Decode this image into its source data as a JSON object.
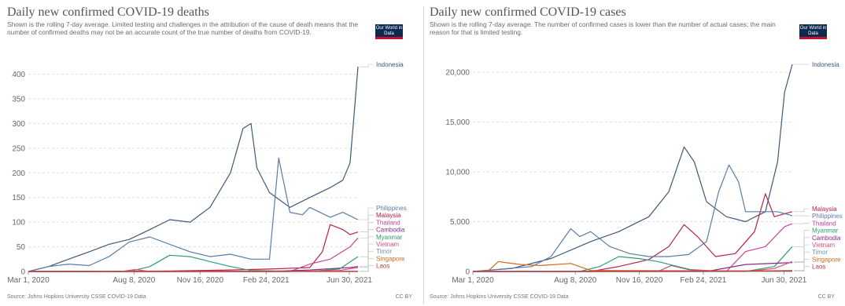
{
  "charts": [
    {
      "title": "Daily new confirmed COVID-19 deaths",
      "subtitle": "Shown is the rolling 7-day average. Limited testing and challenges in the attribution of the cause of death means that the number of confirmed deaths may not be an accurate count of the true number of deaths from COVID-19.",
      "logo": "Our World in Data",
      "source": "Source: Johns Hopkins University CSSE COVID-19 Data",
      "license": "CC BY"
    },
    {
      "title": "Daily new confirmed COVID-19 cases",
      "subtitle": "Shown is the rolling 7-day average. The number of confirmed cases is lower than the number of actual cases; the main reason for that is limited testing.",
      "logo": "Our World in Data",
      "source": "Source: Johns Hopkins University CSSE COVID-19 Data",
      "license": "CC BY"
    }
  ],
  "colors": {
    "Indonesia": "#3f5878",
    "Philippines": "#5a7ca8",
    "Malaysia": "#b8204a",
    "Thailand": "#c9429a",
    "Cambodia": "#8a2a8f",
    "Myanmar": "#2f9e6d",
    "Vietnam": "#e0507a",
    "Timor": "#6f8fb0",
    "Singapore": "#d2691e",
    "Laos": "#c23a3a",
    "grid": "#dddddd",
    "axis": "#555555"
  },
  "chart_data": [
    {
      "type": "line",
      "title": "Daily new confirmed COVID-19 deaths",
      "x_ticks": [
        "Mar 1, 2020",
        "Aug 8, 2020",
        "Nov 16, 2020",
        "Feb 24, 2021",
        "Jun 30, 2021"
      ],
      "x_range": [
        "2020-03-01",
        "2021-07-13"
      ],
      "y_ticks": [
        "0",
        "50",
        "100",
        "150",
        "200",
        "250",
        "300",
        "350",
        "400"
      ],
      "ylim": [
        0,
        420
      ],
      "grid": "horizontal dashed",
      "legend": "right, labels at line ends",
      "series": [
        {
          "name": "Indonesia",
          "x": [
            "2020-03-01",
            "2020-04-01",
            "2020-05-01",
            "2020-06-01",
            "2020-07-01",
            "2020-08-01",
            "2020-09-01",
            "2020-10-01",
            "2020-11-01",
            "2020-12-01",
            "2021-01-01",
            "2021-01-20",
            "2021-02-01",
            "2021-02-10",
            "2021-03-01",
            "2021-04-01",
            "2021-05-01",
            "2021-06-01",
            "2021-06-20",
            "2021-07-01",
            "2021-07-06",
            "2021-07-13"
          ],
          "y": [
            0,
            10,
            25,
            40,
            55,
            65,
            85,
            105,
            100,
            130,
            200,
            290,
            300,
            210,
            160,
            130,
            150,
            170,
            185,
            220,
            300,
            415
          ]
        },
        {
          "name": "Philippines",
          "x": [
            "2020-03-01",
            "2020-04-01",
            "2020-05-01",
            "2020-06-01",
            "2020-07-01",
            "2020-08-01",
            "2020-09-01",
            "2020-10-01",
            "2020-11-01",
            "2020-12-01",
            "2021-01-01",
            "2021-02-01",
            "2021-03-01",
            "2021-03-15",
            "2021-04-01",
            "2021-04-20",
            "2021-05-01",
            "2021-06-01",
            "2021-06-20",
            "2021-07-13"
          ],
          "y": [
            0,
            10,
            15,
            12,
            30,
            60,
            70,
            55,
            40,
            30,
            35,
            25,
            25,
            230,
            120,
            115,
            130,
            110,
            120,
            105
          ]
        },
        {
          "name": "Malaysia",
          "x": [
            "2020-03-01",
            "2020-06-01",
            "2020-10-01",
            "2021-01-01",
            "2021-03-01",
            "2021-05-01",
            "2021-05-20",
            "2021-06-01",
            "2021-06-20",
            "2021-07-01",
            "2021-07-13"
          ],
          "y": [
            0,
            0,
            1,
            3,
            5,
            8,
            40,
            95,
            85,
            75,
            80
          ]
        },
        {
          "name": "Thailand",
          "x": [
            "2020-03-01",
            "2021-01-01",
            "2021-04-01",
            "2021-05-01",
            "2021-06-01",
            "2021-07-01",
            "2021-07-13"
          ],
          "y": [
            0,
            0,
            0,
            15,
            25,
            50,
            68
          ]
        },
        {
          "name": "Cambodia",
          "x": [
            "2020-03-01",
            "2021-03-01",
            "2021-05-01",
            "2021-07-01",
            "2021-07-13"
          ],
          "y": [
            0,
            0,
            3,
            8,
            10
          ]
        },
        {
          "name": "Myanmar",
          "x": [
            "2020-03-01",
            "2020-08-01",
            "2020-09-01",
            "2020-10-01",
            "2020-11-01",
            "2020-12-01",
            "2021-01-01",
            "2021-02-01",
            "2021-05-01",
            "2021-06-15",
            "2021-07-13"
          ],
          "y": [
            0,
            0,
            10,
            33,
            30,
            20,
            10,
            2,
            0,
            5,
            30
          ]
        },
        {
          "name": "Vietnam",
          "x": [
            "2020-03-01",
            "2020-07-20",
            "2020-08-10",
            "2020-09-01",
            "2021-04-01",
            "2021-06-15",
            "2021-07-13"
          ],
          "y": [
            0,
            0,
            4,
            0,
            0,
            2,
            8
          ]
        },
        {
          "name": "Timor",
          "x": [
            "2020-03-01",
            "2021-07-13"
          ],
          "y": [
            0,
            0.3
          ]
        },
        {
          "name": "Singapore",
          "x": [
            "2020-03-01",
            "2020-05-01",
            "2020-07-01",
            "2021-07-13"
          ],
          "y": [
            0,
            0.5,
            0,
            0.5
          ]
        },
        {
          "name": "Laos",
          "x": [
            "2020-03-01",
            "2021-07-13"
          ],
          "y": [
            0,
            0
          ]
        }
      ]
    },
    {
      "type": "line",
      "title": "Daily new confirmed COVID-19 cases",
      "x_ticks": [
        "Mar 1, 2020",
        "Aug 8, 2020",
        "Nov 16, 2020",
        "Feb 24, 2021",
        "Jun 30, 2021"
      ],
      "x_range": [
        "2020-03-01",
        "2021-07-13"
      ],
      "y_ticks": [
        "0",
        "5,000",
        "10,000",
        "15,000",
        "20,000"
      ],
      "ylim": [
        0,
        20800
      ],
      "grid": "horizontal dashed",
      "legend": "right, labels at line ends",
      "series": [
        {
          "name": "Indonesia",
          "x": [
            "2020-03-01",
            "2020-05-01",
            "2020-07-01",
            "2020-09-01",
            "2020-10-15",
            "2020-12-01",
            "2021-01-01",
            "2021-01-25",
            "2021-02-10",
            "2021-03-01",
            "2021-04-01",
            "2021-05-01",
            "2021-06-01",
            "2021-06-20",
            "2021-07-01",
            "2021-07-13"
          ],
          "y": [
            0,
            300,
            1300,
            3000,
            4000,
            5500,
            8000,
            12500,
            11000,
            7000,
            5500,
            5000,
            6000,
            11000,
            18000,
            20800
          ]
        },
        {
          "name": "Malaysia",
          "x": [
            "2020-03-01",
            "2020-09-01",
            "2020-10-15",
            "2020-12-01",
            "2021-01-01",
            "2021-01-25",
            "2021-02-15",
            "2021-03-15",
            "2021-04-15",
            "2021-05-15",
            "2021-06-01",
            "2021-06-15",
            "2021-07-01",
            "2021-07-13"
          ],
          "y": [
            0,
            0,
            500,
            1200,
            2500,
            4700,
            3500,
            1500,
            1800,
            4000,
            7800,
            5500,
            5800,
            6000
          ]
        },
        {
          "name": "Philippines",
          "x": [
            "2020-03-01",
            "2020-06-01",
            "2020-07-01",
            "2020-08-01",
            "2020-08-15",
            "2020-09-01",
            "2020-10-01",
            "2020-11-01",
            "2020-12-01",
            "2021-01-01",
            "2021-02-01",
            "2021-03-01",
            "2021-03-20",
            "2021-04-05",
            "2021-04-20",
            "2021-05-01",
            "2021-06-01",
            "2021-06-20",
            "2021-07-13"
          ],
          "y": [
            0,
            500,
            1500,
            4300,
            3500,
            4000,
            2500,
            1800,
            1500,
            1500,
            1700,
            3000,
            8000,
            10700,
            9000,
            6000,
            6000,
            6000,
            5600
          ]
        },
        {
          "name": "Thailand",
          "x": [
            "2020-03-01",
            "2020-12-15",
            "2021-01-05",
            "2021-02-01",
            "2021-04-01",
            "2021-05-01",
            "2021-06-01",
            "2021-07-01",
            "2021-07-13"
          ],
          "y": [
            0,
            0,
            600,
            200,
            0,
            2000,
            2500,
            4500,
            4800
          ]
        },
        {
          "name": "Myanmar",
          "x": [
            "2020-03-01",
            "2020-08-15",
            "2020-09-15",
            "2020-10-15",
            "2020-11-15",
            "2020-12-15",
            "2021-01-15",
            "2021-02-10",
            "2021-05-01",
            "2021-06-15",
            "2021-07-13"
          ],
          "y": [
            0,
            0,
            500,
            1500,
            1300,
            1000,
            500,
            100,
            0,
            500,
            2500
          ]
        },
        {
          "name": "Cambodia",
          "x": [
            "2020-03-01",
            "2021-03-01",
            "2021-05-01",
            "2021-07-13"
          ],
          "y": [
            0,
            0,
            700,
            900
          ]
        },
        {
          "name": "Vietnam",
          "x": [
            "2020-03-01",
            "2021-05-01",
            "2021-06-15",
            "2021-07-13"
          ],
          "y": [
            0,
            0,
            300,
            1000
          ]
        },
        {
          "name": "Timor",
          "x": [
            "2020-03-01",
            "2021-04-01",
            "2021-07-13"
          ],
          "y": [
            0,
            0,
            100
          ]
        },
        {
          "name": "Singapore",
          "x": [
            "2020-03-01",
            "2020-03-25",
            "2020-04-10",
            "2020-04-20",
            "2020-05-15",
            "2020-06-15",
            "2020-08-01",
            "2020-09-01",
            "2021-07-13"
          ],
          "y": [
            0,
            50,
            1000,
            900,
            700,
            600,
            800,
            100,
            50
          ]
        },
        {
          "name": "Laos",
          "x": [
            "2020-03-01",
            "2021-07-13"
          ],
          "y": [
            0,
            50
          ]
        }
      ]
    }
  ]
}
